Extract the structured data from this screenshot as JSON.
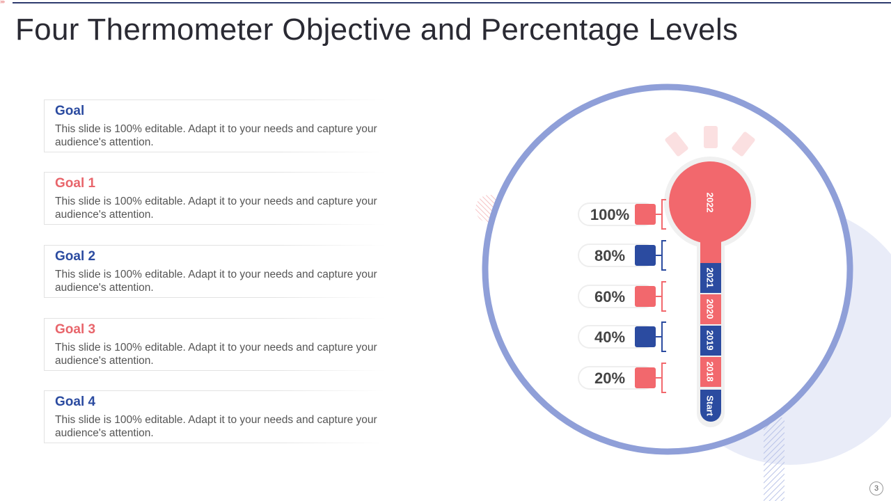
{
  "slide": {
    "title": "Four Thermometer Objective and Percentage Levels",
    "page_number": "3"
  },
  "goals": [
    {
      "title": "Goal",
      "description": "This slide is 100% editable. Adapt it to your needs and capture your audience's attention.",
      "color": "#2b4ba0"
    },
    {
      "title": "Goal 1",
      "description": "This slide is 100% editable. Adapt it to your needs and capture your audience's attention.",
      "color": "#e8656b"
    },
    {
      "title": "Goal 2",
      "description": "This slide is 100% editable. Adapt it to your needs and capture your audience's attention.",
      "color": "#2b4ba0"
    },
    {
      "title": "Goal 3",
      "description": "This slide is 100% editable. Adapt it to your needs and capture your audience's attention.",
      "color": "#e8656b"
    },
    {
      "title": "Goal 4",
      "description": "This slide is 100% editable. Adapt it to your needs and capture your audience's attention.",
      "color": "#2b4ba0"
    }
  ],
  "thermometer": {
    "bulb_label": "2022",
    "segments": [
      "2021",
      "2020",
      "2019",
      "2018",
      "Start"
    ],
    "levels": [
      "100%",
      "80%",
      "60%",
      "40%",
      "20%"
    ],
    "colors": {
      "blue": "#2b4ba0",
      "pink": "#f2686d",
      "ring": "#8f9fd8"
    }
  }
}
